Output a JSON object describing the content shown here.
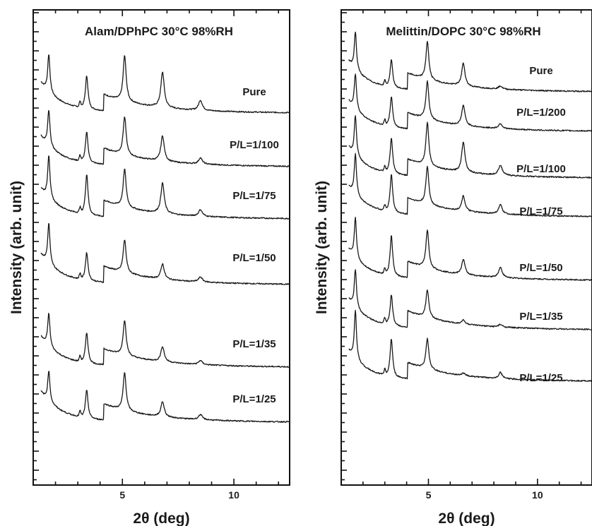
{
  "chart_data": [
    {
      "type": "line",
      "title": "Alam/DPhPC 30°C 98%RH",
      "xlabel": "2θ (deg)",
      "ylabel": "Intensity (arb. unit)",
      "xlim": [
        1,
        12.5
      ],
      "x_ticks": [
        5,
        10
      ],
      "peaks_2theta": [
        1.7,
        3.4,
        5.1,
        6.8,
        8.5
      ],
      "series": [
        {
          "name": "Pure",
          "peak_heights": [
            0.75,
            0.65,
            0.9,
            0.7,
            0.2
          ]
        },
        {
          "name": "P/L=1/100",
          "peak_heights": [
            0.7,
            0.6,
            0.75,
            0.5,
            0.12
          ]
        },
        {
          "name": "P/L=1/75",
          "peak_heights": [
            0.85,
            0.8,
            0.75,
            0.6,
            0.13
          ]
        },
        {
          "name": "P/L=1/50",
          "peak_heights": [
            0.8,
            0.55,
            0.65,
            0.3,
            0.1
          ]
        },
        {
          "name": "P/L=1/35",
          "peak_heights": [
            0.65,
            0.6,
            0.7,
            0.3,
            0.08
          ]
        },
        {
          "name": "P/L=1/25",
          "peak_heights": [
            0.6,
            0.55,
            0.75,
            0.3,
            0.1
          ]
        }
      ]
    },
    {
      "type": "line",
      "title": "Melittin/DOPC 30°C 98%RH",
      "xlabel": "2θ (deg)",
      "ylabel": "Intensity (arb. unit)",
      "xlim": [
        1,
        12.5
      ],
      "x_ticks": [
        5,
        10
      ],
      "peaks_2theta": [
        1.65,
        3.3,
        4.95,
        6.6,
        8.3
      ],
      "series": [
        {
          "name": "Pure",
          "peak_heights": [
            0.75,
            0.55,
            0.75,
            0.45,
            0.06
          ]
        },
        {
          "name": "P/L=1/200",
          "peak_heights": [
            0.7,
            0.6,
            0.75,
            0.4,
            0.1
          ]
        },
        {
          "name": "P/L=1/100",
          "peak_heights": [
            0.8,
            0.7,
            0.85,
            0.6,
            0.2
          ]
        },
        {
          "name": "P/L=1/75",
          "peak_heights": [
            0.8,
            0.75,
            0.75,
            0.3,
            0.18
          ]
        },
        {
          "name": "P/L=1/50",
          "peak_heights": [
            0.8,
            0.8,
            0.75,
            0.3,
            0.2
          ]
        },
        {
          "name": "P/L=1/35",
          "peak_heights": [
            0.75,
            0.6,
            0.55,
            0.08,
            0.05
          ]
        },
        {
          "name": "P/L=1/25",
          "peak_heights": [
            0.95,
            0.75,
            0.6,
            0.05,
            0.12
          ]
        }
      ]
    }
  ]
}
